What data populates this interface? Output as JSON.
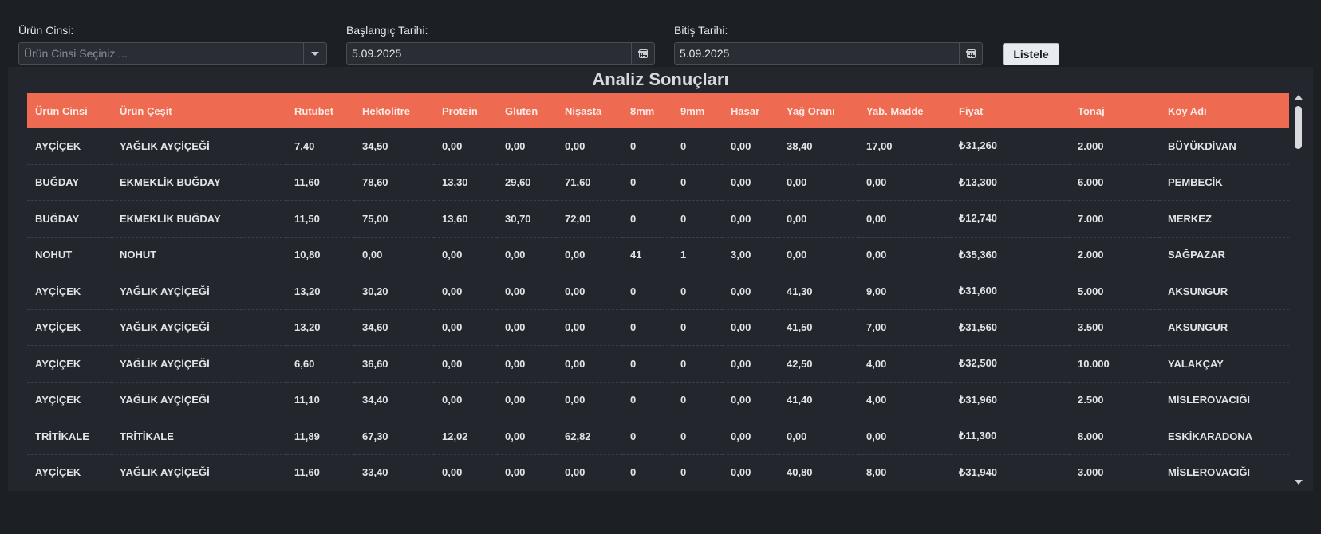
{
  "filters": {
    "urun_cinsi": {
      "label": "Ürün Cinsi:",
      "placeholder": "Ürün Cinsi Seçiniz ..."
    },
    "baslangic": {
      "label": "Başlangıç Tarihi:",
      "value": "5.09.2025"
    },
    "bitis": {
      "label": "Bitiş Tarihi:",
      "value": "5.09.2025"
    },
    "submit_label": "Listele"
  },
  "results": {
    "title": "Analiz Sonuçları",
    "columns": [
      "Ürün Cinsi",
      "Ürün Çeşit",
      "Rutubet",
      "Hektolitre",
      "Protein",
      "Gluten",
      "Nişasta",
      "8mm",
      "9mm",
      "Hasar",
      "Yağ Oranı",
      "Yab. Madde",
      "Fiyat",
      "Tonaj",
      "Köy Adı"
    ],
    "rows": [
      [
        "AYÇİÇEK",
        "YAĞLIK AYÇİÇEĞİ",
        "7,40",
        "34,50",
        "0,00",
        "0,00",
        "0,00",
        "0",
        "0",
        "0,00",
        "38,40",
        "17,00",
        "₺31,260",
        "2.000",
        "BÜYÜKDİVAN"
      ],
      [
        "BUĞDAY",
        "EKMEKLİK BUĞDAY",
        "11,60",
        "78,60",
        "13,30",
        "29,60",
        "71,60",
        "0",
        "0",
        "0,00",
        "0,00",
        "0,00",
        "₺13,300",
        "6.000",
        "PEMBECİK"
      ],
      [
        "BUĞDAY",
        "EKMEKLİK BUĞDAY",
        "11,50",
        "75,00",
        "13,60",
        "30,70",
        "72,00",
        "0",
        "0",
        "0,00",
        "0,00",
        "0,00",
        "₺12,740",
        "7.000",
        "MERKEZ"
      ],
      [
        "NOHUT",
        "NOHUT",
        "10,80",
        "0,00",
        "0,00",
        "0,00",
        "0,00",
        "41",
        "1",
        "3,00",
        "0,00",
        "0,00",
        "₺35,360",
        "2.000",
        "SAĞPAZAR"
      ],
      [
        "AYÇİÇEK",
        "YAĞLIK AYÇİÇEĞİ",
        "13,20",
        "30,20",
        "0,00",
        "0,00",
        "0,00",
        "0",
        "0",
        "0,00",
        "41,30",
        "9,00",
        "₺31,600",
        "5.000",
        "AKSUNGUR"
      ],
      [
        "AYÇİÇEK",
        "YAĞLIK AYÇİÇEĞİ",
        "13,20",
        "34,60",
        "0,00",
        "0,00",
        "0,00",
        "0",
        "0",
        "0,00",
        "41,50",
        "7,00",
        "₺31,560",
        "3.500",
        "AKSUNGUR"
      ],
      [
        "AYÇİÇEK",
        "YAĞLIK AYÇİÇEĞİ",
        "6,60",
        "36,60",
        "0,00",
        "0,00",
        "0,00",
        "0",
        "0",
        "0,00",
        "42,50",
        "4,00",
        "₺32,500",
        "10.000",
        "YALAKÇAY"
      ],
      [
        "AYÇİÇEK",
        "YAĞLIK AYÇİÇEĞİ",
        "11,10",
        "34,40",
        "0,00",
        "0,00",
        "0,00",
        "0",
        "0",
        "0,00",
        "41,40",
        "4,00",
        "₺31,960",
        "2.500",
        "MİSLEROVACIĞI"
      ],
      [
        "TRİTİKALE",
        "TRİTİKALE",
        "11,89",
        "67,30",
        "12,02",
        "0,00",
        "62,82",
        "0",
        "0",
        "0,00",
        "0,00",
        "0,00",
        "₺11,300",
        "8.000",
        "ESKİKARADONA"
      ],
      [
        "AYÇİÇEK",
        "YAĞLIK AYÇİÇEĞİ",
        "11,60",
        "33,40",
        "0,00",
        "0,00",
        "0,00",
        "0",
        "0",
        "0,00",
        "40,80",
        "8,00",
        "₺31,940",
        "3.000",
        "MİSLEROVACIĞI"
      ]
    ]
  },
  "icons": {
    "dropdown": "chevron-down-icon",
    "date_picker": "calendar-icon",
    "scroll_up": "arrow-up-icon",
    "scroll_down": "arrow-down-icon"
  }
}
